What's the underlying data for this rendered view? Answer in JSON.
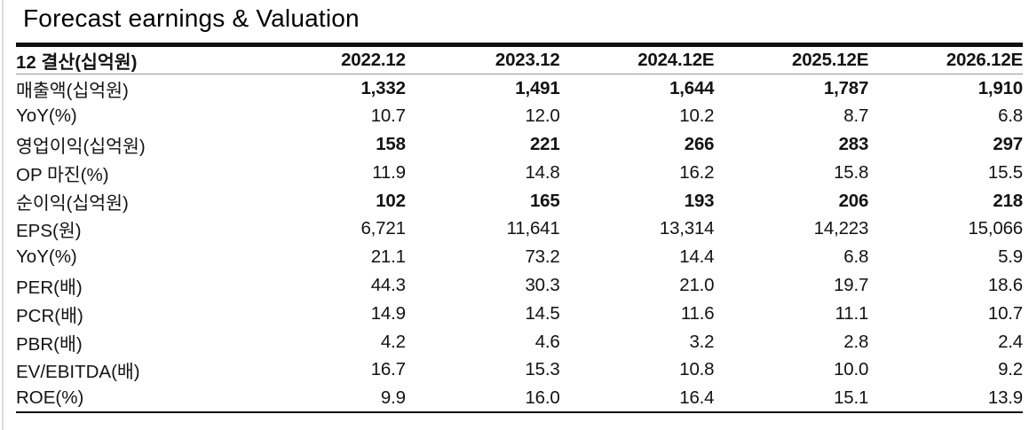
{
  "title": "Forecast earnings & Valuation",
  "table": {
    "header": {
      "label": "12 결산(십억원)",
      "years": [
        "2022.12",
        "2023.12",
        "2024.12E",
        "2025.12E",
        "2026.12E"
      ]
    },
    "rows": [
      {
        "label": "매출액(십억원)",
        "bold_label": true,
        "bold_values": true,
        "values": [
          "1,332",
          "1,491",
          "1,644",
          "1,787",
          "1,910"
        ]
      },
      {
        "label": "YoY(%)",
        "bold_label": false,
        "bold_values": false,
        "values": [
          "10.7",
          "12.0",
          "10.2",
          "8.7",
          "6.8"
        ]
      },
      {
        "label": "영업이익(십억원)",
        "bold_label": true,
        "bold_values": true,
        "values": [
          "158",
          "221",
          "266",
          "283",
          "297"
        ]
      },
      {
        "label": "OP 마진(%)",
        "bold_label": false,
        "bold_values": false,
        "values": [
          "11.9",
          "14.8",
          "16.2",
          "15.8",
          "15.5"
        ]
      },
      {
        "label": "순이익(십억원)",
        "bold_label": true,
        "bold_values": true,
        "values": [
          "102",
          "165",
          "193",
          "206",
          "218"
        ]
      },
      {
        "label": "EPS(원)",
        "bold_label": true,
        "bold_values": false,
        "values": [
          "6,721",
          "11,641",
          "13,314",
          "14,223",
          "15,066"
        ]
      },
      {
        "label": "YoY(%)",
        "bold_label": false,
        "bold_values": false,
        "values": [
          "21.1",
          "73.2",
          "14.4",
          "6.8",
          "5.9"
        ]
      },
      {
        "label": "PER(배)",
        "bold_label": true,
        "bold_values": false,
        "values": [
          "44.3",
          "30.3",
          "21.0",
          "19.7",
          "18.6"
        ]
      },
      {
        "label": "PCR(배)",
        "bold_label": true,
        "bold_values": false,
        "values": [
          "14.9",
          "14.5",
          "11.6",
          "11.1",
          "10.7"
        ]
      },
      {
        "label": "PBR(배)",
        "bold_label": true,
        "bold_values": false,
        "values": [
          "4.2",
          "4.6",
          "3.2",
          "2.8",
          "2.4"
        ]
      },
      {
        "label": "EV/EBITDA(배)",
        "bold_label": true,
        "bold_values": false,
        "values": [
          "16.7",
          "15.3",
          "10.8",
          "10.0",
          "9.2"
        ]
      },
      {
        "label": "ROE(%)",
        "bold_label": true,
        "bold_values": false,
        "values": [
          "9.9",
          "16.0",
          "16.4",
          "15.1",
          "13.9"
        ]
      }
    ]
  },
  "chart_data": {
    "type": "table",
    "title": "Forecast earnings & Valuation",
    "columns": [
      "12 결산(십억원)",
      "2022.12",
      "2023.12",
      "2024.12E",
      "2025.12E",
      "2026.12E"
    ],
    "rows": [
      [
        "매출액(십억원)",
        1332,
        1491,
        1644,
        1787,
        1910
      ],
      [
        "YoY(%)",
        10.7,
        12.0,
        10.2,
        8.7,
        6.8
      ],
      [
        "영업이익(십억원)",
        158,
        221,
        266,
        283,
        297
      ],
      [
        "OP 마진(%)",
        11.9,
        14.8,
        16.2,
        15.8,
        15.5
      ],
      [
        "순이익(십억원)",
        102,
        165,
        193,
        206,
        218
      ],
      [
        "EPS(원)",
        6721,
        11641,
        13314,
        14223,
        15066
      ],
      [
        "YoY(%)",
        21.1,
        73.2,
        14.4,
        6.8,
        5.9
      ],
      [
        "PER(배)",
        44.3,
        30.3,
        21.0,
        19.7,
        18.6
      ],
      [
        "PCR(배)",
        14.9,
        14.5,
        11.6,
        11.1,
        10.7
      ],
      [
        "PBR(배)",
        4.2,
        4.6,
        3.2,
        2.8,
        2.4
      ],
      [
        "EV/EBITDA(배)",
        16.7,
        15.3,
        10.8,
        10.0,
        9.2
      ],
      [
        "ROE(%)",
        9.9,
        16.0,
        16.4,
        15.1,
        13.9
      ]
    ],
    "text_color": "#111111",
    "border_color": "#101010",
    "header_rule_color": "#979797",
    "background": "#ffffff"
  }
}
